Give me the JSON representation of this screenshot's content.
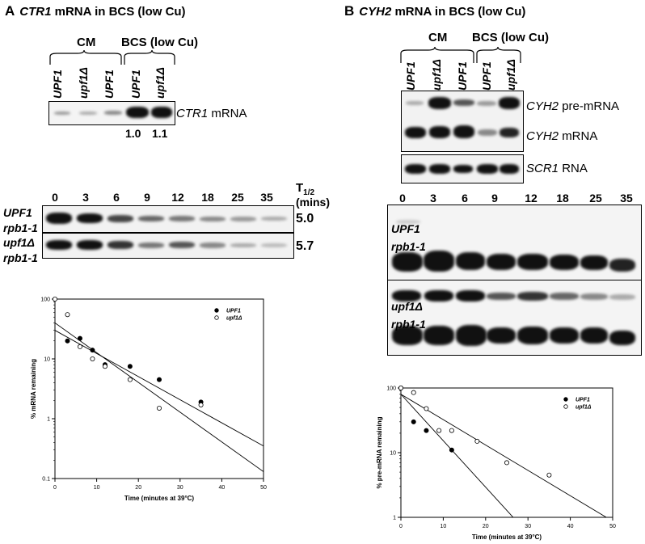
{
  "panel_a": {
    "letter": "A",
    "title_gene": "CTR1",
    "title_rest": "mRNA in BCS (low Cu)",
    "group_cm": "CM",
    "group_bcs": "BCS (low Cu)",
    "lanes": [
      "UPF1",
      "upf1Δ",
      "UPF1",
      "UPF1",
      "upf1Δ"
    ],
    "blot_label_gene": "CTR1",
    "blot_label_rest": "mRNA",
    "ratios": [
      "1.0",
      "1.1"
    ],
    "time_points": [
      "0",
      "3",
      "6",
      "9",
      "12",
      "18",
      "25",
      "35"
    ],
    "t_half_label": "T",
    "t_half_sub": "1/2",
    "t_half_unit": "(mins)",
    "rows": [
      {
        "line1": "UPF1",
        "line2": "rpb1-1",
        "t_half": "5.0"
      },
      {
        "line1": "upf1Δ",
        "line2": "rpb1-1",
        "t_half": "5.7"
      }
    ]
  },
  "panel_b": {
    "letter": "B",
    "title_gene": "CYH2",
    "title_rest": "mRNA in BCS (low Cu)",
    "group_cm": "CM",
    "group_bcs": "BCS (low Cu)",
    "lanes": [
      "UPF1",
      "upf1Δ",
      "UPF1",
      "UPF1",
      "upf1Δ"
    ],
    "pre_label_gene": "CYH2",
    "pre_label_rest": "pre-mRNA",
    "mrna_label_gene": "CYH2",
    "mrna_label_rest": "mRNA",
    "scr_label_gene": "SCR1",
    "scr_label_rest": "RNA",
    "time_points": [
      "0",
      "3",
      "6",
      "9",
      "12",
      "18",
      "25",
      "35"
    ],
    "rows": [
      {
        "line1": "UPF1",
        "line2": "rpb1-1"
      },
      {
        "line1": "upf1Δ",
        "line2": "rpb1-1"
      }
    ]
  },
  "chart_data": [
    {
      "type": "scatter",
      "title": "",
      "xlabel": "Time (minutes at 39°C)",
      "ylabel": "% mRNA remaining",
      "xlim": [
        0,
        50
      ],
      "ylim": [
        0.1,
        100
      ],
      "yscale": "log",
      "xticks": [
        "0",
        "10",
        "20",
        "30",
        "40",
        "50"
      ],
      "yticks": [
        "0.1",
        "1",
        "10",
        "100"
      ],
      "legend_position": "top-right",
      "series": [
        {
          "name": "UPF1",
          "marker": "filled-circle",
          "x": [
            3,
            6,
            9,
            12,
            18,
            25,
            35
          ],
          "y": [
            20,
            22,
            14,
            8,
            7.5,
            4.5,
            1.9
          ],
          "fit": {
            "x": [
              0,
              50
            ],
            "y": [
              30,
              0.35
            ]
          }
        },
        {
          "name": "upf1Δ",
          "marker": "open-circle",
          "x": [
            0,
            3,
            6,
            9,
            12,
            18,
            25,
            35
          ],
          "y": [
            100,
            55,
            16,
            10,
            7.5,
            4.5,
            1.5,
            1.7
          ],
          "fit": {
            "x": [
              0,
              50
            ],
            "y": [
              40,
              0.13
            ]
          }
        }
      ]
    },
    {
      "type": "scatter",
      "title": "",
      "xlabel": "Time (minutes at 39°C)",
      "ylabel": "% pre-mRNA remaining",
      "xlim": [
        0,
        50
      ],
      "ylim": [
        1,
        100
      ],
      "yscale": "log",
      "xticks": [
        "0",
        "10",
        "20",
        "30",
        "40",
        "50"
      ],
      "yticks": [
        "1",
        "10",
        "100"
      ],
      "legend_position": "top-right",
      "series": [
        {
          "name": "UPF1",
          "marker": "filled-circle",
          "x": [
            0,
            3,
            6,
            12
          ],
          "y": [
            100,
            30,
            22,
            11
          ],
          "fit": {
            "x": [
              0,
              26.5
            ],
            "y": [
              80,
              1
            ]
          }
        },
        {
          "name": "upf1Δ",
          "marker": "open-circle",
          "x": [
            0,
            3,
            6,
            9,
            12,
            18,
            25,
            35
          ],
          "y": [
            100,
            85,
            48,
            22,
            22,
            15,
            7,
            4.5
          ],
          "fit": {
            "x": [
              0,
              48.5
            ],
            "y": [
              80,
              1
            ]
          }
        }
      ]
    }
  ]
}
